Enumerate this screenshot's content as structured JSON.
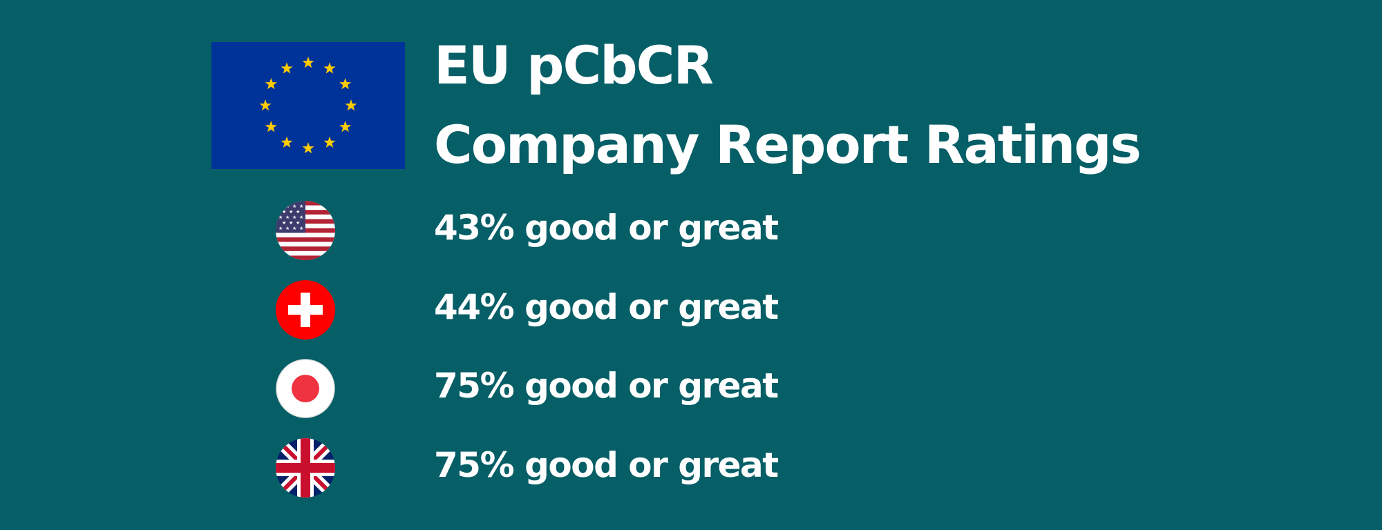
{
  "header": {
    "title_line1": "EU pCbCR",
    "title_line2": "Company Report Ratings",
    "flag_icon": "eu-flag-icon"
  },
  "ratings": [
    {
      "country_icon": "us-flag-icon",
      "text": "43% good or great",
      "percent": 43
    },
    {
      "country_icon": "swiss-flag-icon",
      "text": "44% good or great",
      "percent": 44
    },
    {
      "country_icon": "japan-flag-icon",
      "text": "75% good or great",
      "percent": 75
    },
    {
      "country_icon": "uk-flag-icon",
      "text": "75% good or great",
      "percent": 75
    }
  ],
  "colors": {
    "background": "#065e66",
    "text": "#ffffff",
    "eu_blue": "#003399",
    "eu_gold": "#ffcc00",
    "us_red": "#b22234",
    "us_blue": "#3c3b6e",
    "swiss_red": "#ff0000",
    "japan_red": "#ef3340",
    "uk_blue": "#012169",
    "uk_red": "#c8102e"
  }
}
